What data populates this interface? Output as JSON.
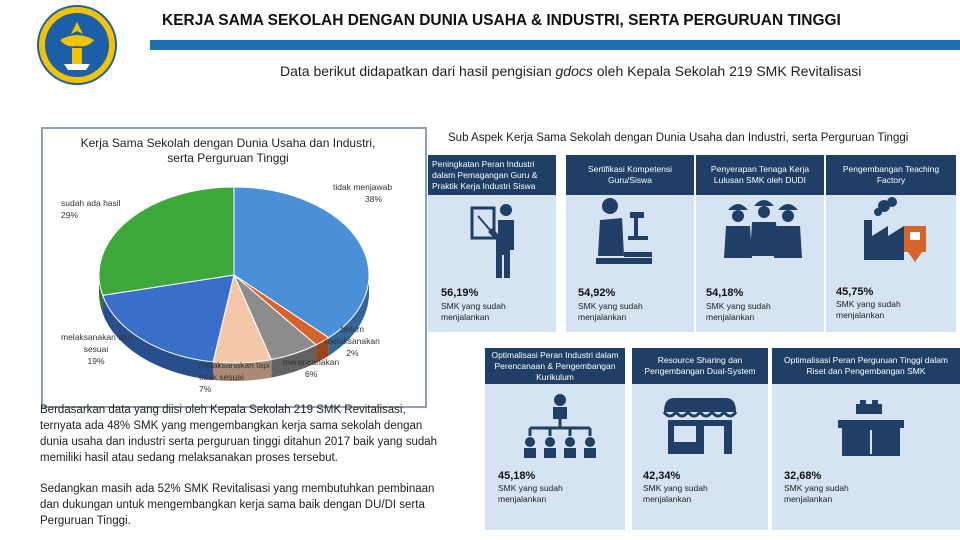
{
  "header": {
    "title": "KERJA SAMA SEKOLAH DENGAN DUNIA USAHA & INDUSTRI, SERTA PERGURUAN TINGGI",
    "subtitle_before": "Data berikut didapatkan dari hasil pengisian ",
    "subtitle_em": "gdocs",
    "subtitle_after": " oleh Kepala Sekolah 219 SMK Revitalisasi"
  },
  "colors": {
    "navy": "#1f3f66",
    "card": "#d5e3f3",
    "accent_blue": "#1f6fb3"
  },
  "chart_data": {
    "type": "pie",
    "title_line1": "Kerja Sama Sekolah dengan Dunia Usaha dan Industri,",
    "title_line2": "serta Perguruan Tinggi",
    "slices": [
      {
        "label": "tidak menjawab",
        "value": 38,
        "display": "38%",
        "color": "#4a90d9"
      },
      {
        "label": "belum melaksanakan",
        "value": 2,
        "display": "2%",
        "color": "#d9622b"
      },
      {
        "label": "merencanakan",
        "value": 6,
        "display": "6%",
        "color": "#8c8c8c"
      },
      {
        "label": "melaksanakan tapi tidak sesuai",
        "value": 7,
        "display": "7%",
        "color": "#f3c7a8"
      },
      {
        "label": "melaksanakan dan sesuai",
        "value": 19,
        "display": "19%",
        "color": "#3a6fc9"
      },
      {
        "label": "sudah ada hasil",
        "value": 29,
        "display": "29%",
        "color": "#3fa83a"
      }
    ]
  },
  "labels": {
    "tidak_menjawab": [
      "tidak menjawab",
      "38%"
    ],
    "sudah_ada_hasil": [
      "sudah ada hasil",
      "29%"
    ],
    "melaksanakan_sesuai": [
      "melaksanakan dan",
      "sesuai",
      "19%"
    ],
    "melaksanakan_tidak": [
      "melaksanakan tapi",
      "tidak sesuai",
      "7%"
    ],
    "merencanakan": [
      "merencanakan",
      "6%"
    ],
    "belum": [
      "belum",
      "melaksanakan",
      "2%"
    ]
  },
  "sub_heading": "Sub Aspek Kerja Sama Sekolah dengan Dunia Usaha dan Industri, serta Perguruan Tinggi",
  "aspects_top": [
    {
      "title": "Peningkatan Peran Industri dalam Pemagangan Guru & Praktik Kerja Industri Siswa",
      "icon": "teacher-board-icon",
      "percent": "56,19%",
      "progress": 56.19,
      "desc": "SMK yang sudah menjalankan"
    },
    {
      "title": "Sertifikasi Kompetensi Guru/Siswa",
      "icon": "microscope-icon",
      "percent": "54,92%",
      "progress": 54.92,
      "desc": "SMK yang sudah menjalankan"
    },
    {
      "title": "Penyerapan Tenaga Kerja Lulusan SMK oleh DUDI",
      "icon": "workers-icon",
      "percent": "54,18%",
      "progress": 54.18,
      "desc": "SMK yang sudah menjalankan"
    },
    {
      "title": "Pengembangan Teaching Factory",
      "icon": "factory-icon",
      "percent": "45,75%",
      "progress": 45.75,
      "desc": "SMK yang sudah menjalankan"
    }
  ],
  "aspects_bottom": [
    {
      "title": "Optimalisasi Peran Industri dalam Perencanaan & Pengembangan Kurikulum",
      "icon": "hierarchy-icon",
      "percent": "45,18%",
      "progress": 45.18,
      "desc": "SMK yang sudah menjalankan"
    },
    {
      "title": "Resource Sharing dan Pengembangan Dual-System",
      "icon": "store-icon",
      "percent": "42,34%",
      "progress": 42.34,
      "desc": "SMK yang sudah menjalankan"
    },
    {
      "title": "Optimalisasi Peran Perguruan Tinggi dalam Riset dan Pengembangan SMK",
      "icon": "reception-desk-icon",
      "percent": "32,68%",
      "progress": 32.68,
      "desc": "SMK yang sudah menjalankan"
    }
  ],
  "body": {
    "p1": "Berdasarkan data yang diisi oleh Kepala Sekolah 219 SMK Revitalisasi, ternyata ada 48% SMK yang mengembangkan kerja sama sekolah dengan dunia usaha dan industri serta perguruan tinggi ditahun 2017 baik yang sudah memiliki hasil atau sedang melaksanakan proses tersebut.",
    "p2": "Sedangkan masih ada 52% SMK Revitalisasi yang membutuhkan pembinaan dan dukungan untuk mengembangkan kerja sama baik dengan DU/DI serta Perguruan Tinggi."
  }
}
